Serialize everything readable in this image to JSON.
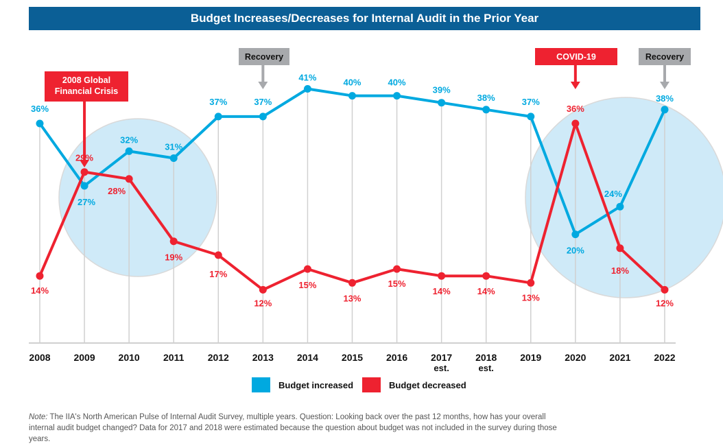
{
  "chart_data": {
    "type": "line",
    "title": "Budget Increases/Decreases for Internal Audit in the Prior Year",
    "categories": [
      "2008",
      "2009",
      "2010",
      "2011",
      "2012",
      "2013",
      "2014",
      "2015",
      "2016",
      "2017",
      "2018",
      "2019",
      "2020",
      "2021",
      "2022"
    ],
    "category_sublabels": [
      "",
      "",
      "",
      "",
      "",
      "",
      "",
      "",
      "",
      "est.",
      "est.",
      "",
      "",
      "",
      ""
    ],
    "series": [
      {
        "name": "Budget increased",
        "color": "#00a9e0",
        "values": [
          36,
          27,
          32,
          31,
          37,
          37,
          41,
          40,
          40,
          39,
          38,
          37,
          20,
          24,
          38
        ]
      },
      {
        "name": "Budget decreased",
        "color": "#ee2230",
        "values": [
          14,
          29,
          28,
          19,
          17,
          12,
          15,
          13,
          15,
          14,
          14,
          13,
          36,
          18,
          12
        ]
      }
    ],
    "value_suffix": "%",
    "legend_position": "bottom",
    "grid": "vertical",
    "annotations": [
      {
        "text": "2008 Global Financial Crisis",
        "year": "2009",
        "color": "#ee2230"
      },
      {
        "text": "Recovery",
        "year": "2013",
        "color": "#a7a9ac"
      },
      {
        "text": "COVID-19",
        "year": "2020",
        "color": "#ee2230"
      },
      {
        "text": "Recovery",
        "year": "2022",
        "color": "#a7a9ac"
      }
    ],
    "highlight_periods": [
      [
        "2009",
        "2011"
      ],
      [
        "2020",
        "2022"
      ]
    ]
  },
  "note": {
    "label": "Note:",
    "text": " The IIA's North American Pulse of Internal Audit Survey, multiple years. Question: Looking back over the past 12 months, how has your overall internal audit budget changed? Data for 2017 and 2018 were estimated because the question about budget was not included in the survey during those years."
  }
}
